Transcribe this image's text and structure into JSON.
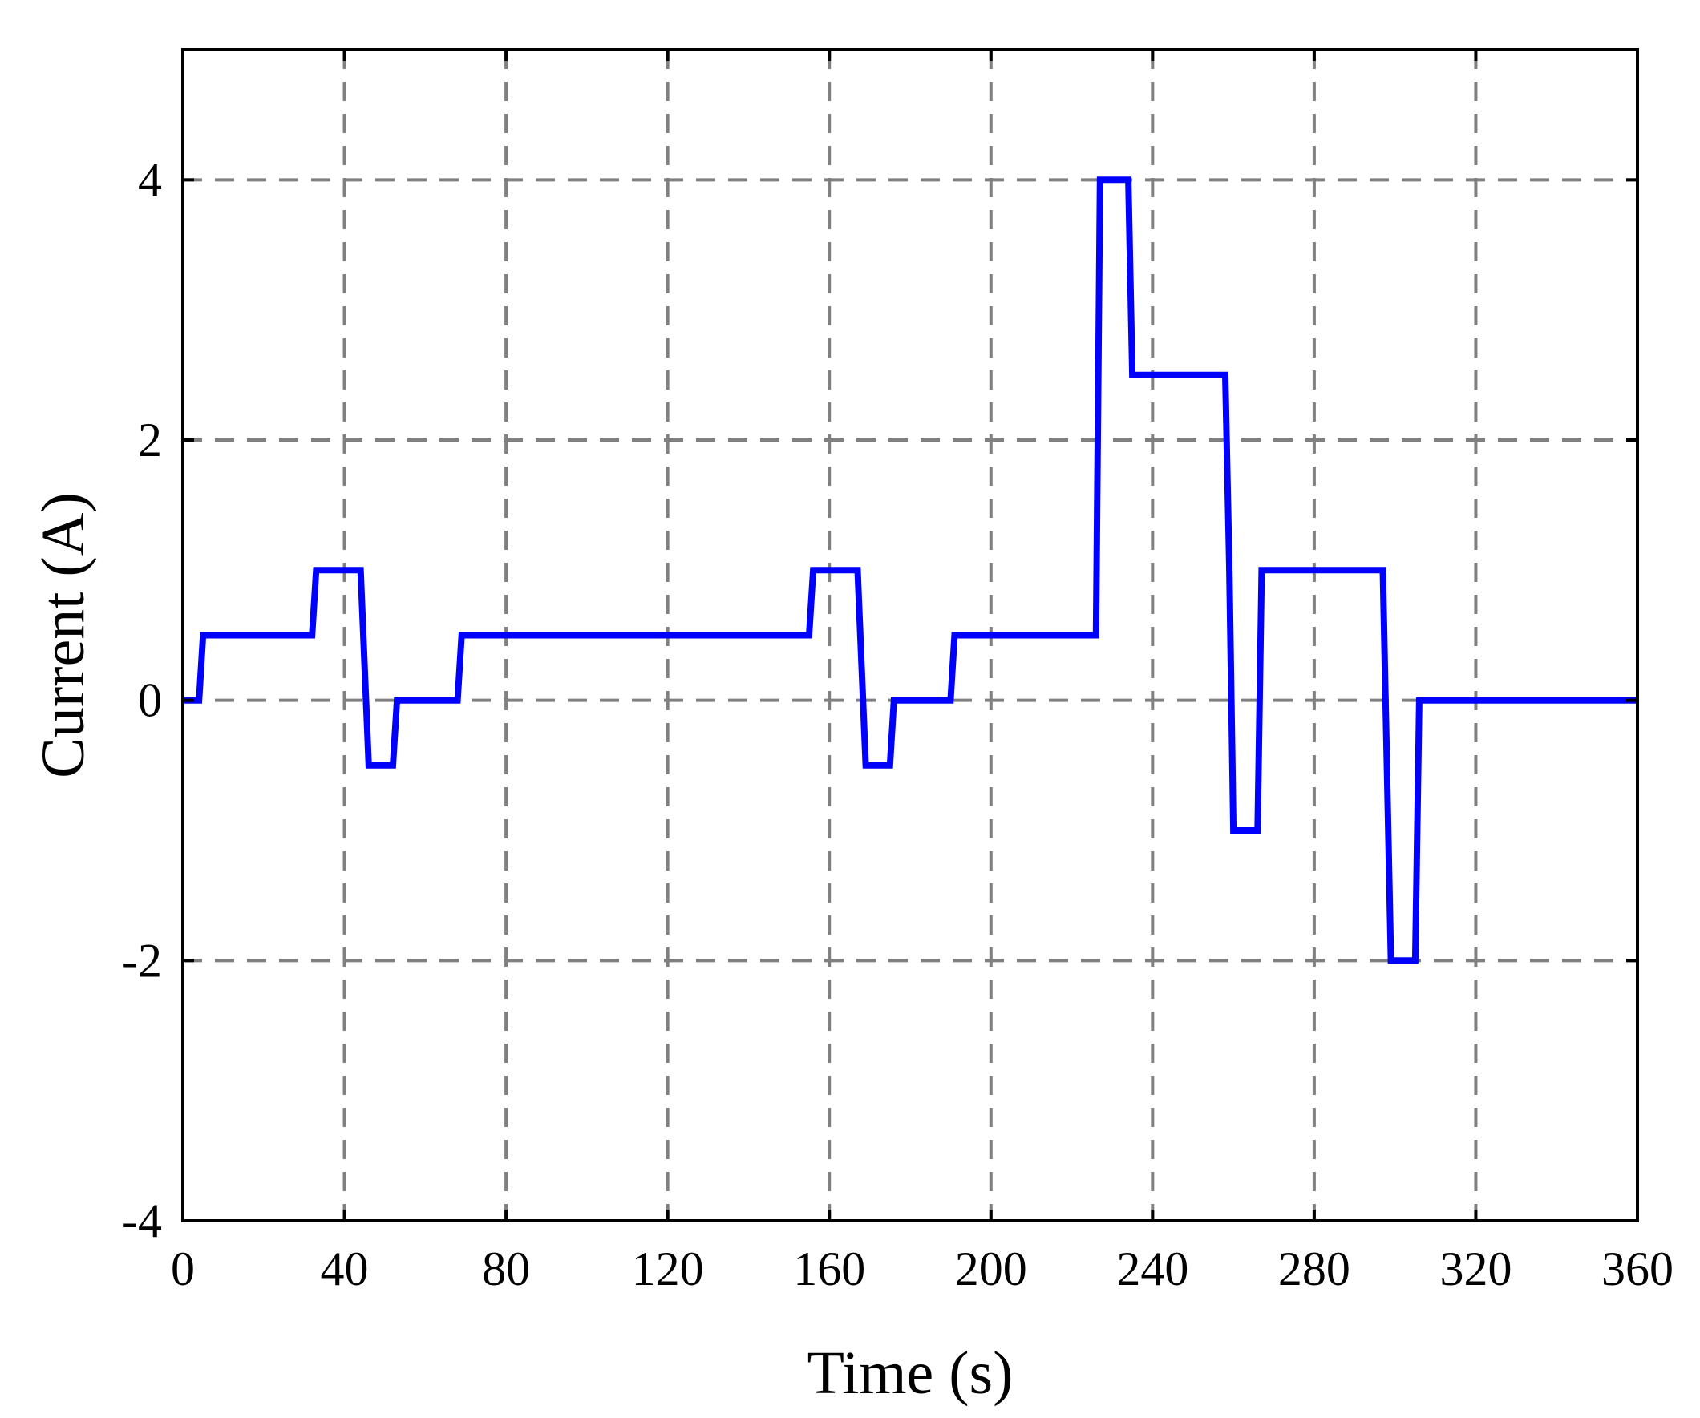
{
  "chart_data": {
    "type": "line",
    "xlabel": "Time (s)",
    "ylabel": "Current (A)",
    "xlim": [
      0,
      360
    ],
    "ylim": [
      -4,
      5
    ],
    "xticks": [
      0,
      40,
      80,
      120,
      160,
      200,
      240,
      280,
      320,
      360
    ],
    "yticks": [
      -4,
      -2,
      0,
      2,
      4
    ],
    "xtick_labels": [
      "0",
      "40",
      "80",
      "120",
      "160",
      "200",
      "240",
      "280",
      "320",
      "360"
    ],
    "ytick_labels": [
      "-4",
      "-2",
      "0",
      "2",
      "4"
    ],
    "grid": true,
    "legend": "none",
    "series": [
      {
        "color": "#0000ff",
        "x": [
          0,
          4,
          5,
          32,
          33,
          44,
          46,
          52,
          53,
          68,
          69,
          155,
          156,
          167,
          169,
          175,
          176,
          190,
          191,
          226,
          227,
          234,
          235,
          258,
          259,
          260,
          266,
          267,
          297,
          299,
          305,
          306,
          360
        ],
        "y": [
          0,
          0,
          0.5,
          0.5,
          1,
          1,
          -0.5,
          -0.5,
          0,
          0,
          0.5,
          0.5,
          1,
          1,
          -0.5,
          -0.5,
          0,
          0,
          0.5,
          0.5,
          4,
          4,
          2.5,
          2.5,
          1,
          -1,
          -1,
          1,
          1,
          -2,
          -2,
          0,
          0
        ]
      }
    ]
  }
}
